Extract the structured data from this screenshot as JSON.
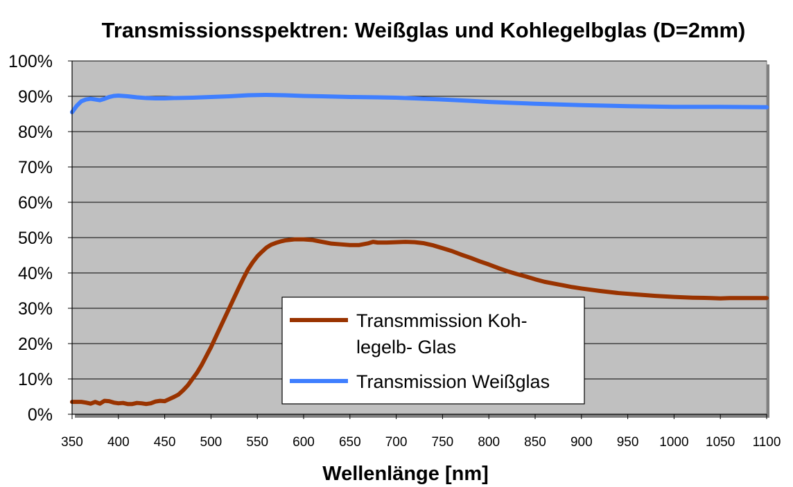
{
  "chart_data": {
    "type": "line",
    "title": "Transmissionsspektren: Weißglas und Kohlegelbglas (D=2mm)",
    "xlabel": "Wellenlänge [nm]",
    "ylabel": "",
    "xlim": [
      350,
      1100
    ],
    "ylim": [
      0,
      100
    ],
    "x_ticks": [
      "350",
      "400",
      "450",
      "500",
      "550",
      "600",
      "650",
      "700",
      "750",
      "800",
      "850",
      "900",
      "950",
      "1000",
      "1050",
      "1100"
    ],
    "y_ticks": [
      "0%",
      "10%",
      "20%",
      "30%",
      "40%",
      "50%",
      "60%",
      "70%",
      "80%",
      "90%",
      "100%"
    ],
    "grid": true,
    "legend_position": "bottom-center",
    "plot_background": "#c0c0c0",
    "series": [
      {
        "name": "Transmmission Kohlegelb- Glas",
        "legend_lines": [
          "Transmmission Koh-",
          "legelb- Glas"
        ],
        "color": "#993300",
        "points": [
          [
            350,
            3.5
          ],
          [
            360,
            3.5
          ],
          [
            365,
            3.3
          ],
          [
            370,
            3.0
          ],
          [
            375,
            3.5
          ],
          [
            380,
            3.0
          ],
          [
            385,
            3.8
          ],
          [
            390,
            3.7
          ],
          [
            395,
            3.3
          ],
          [
            400,
            3.1
          ],
          [
            405,
            3.2
          ],
          [
            410,
            2.9
          ],
          [
            415,
            2.9
          ],
          [
            420,
            3.2
          ],
          [
            425,
            3.1
          ],
          [
            430,
            2.9
          ],
          [
            435,
            3.1
          ],
          [
            440,
            3.6
          ],
          [
            445,
            3.8
          ],
          [
            450,
            3.7
          ],
          [
            455,
            4.3
          ],
          [
            460,
            4.9
          ],
          [
            465,
            5.6
          ],
          [
            470,
            6.8
          ],
          [
            475,
            8.2
          ],
          [
            480,
            10.0
          ],
          [
            485,
            11.8
          ],
          [
            490,
            14.0
          ],
          [
            495,
            16.5
          ],
          [
            500,
            19.0
          ],
          [
            505,
            21.8
          ],
          [
            510,
            24.6
          ],
          [
            515,
            27.4
          ],
          [
            520,
            30.2
          ],
          [
            525,
            33.0
          ],
          [
            530,
            35.8
          ],
          [
            535,
            38.5
          ],
          [
            540,
            41.0
          ],
          [
            545,
            43.0
          ],
          [
            550,
            44.7
          ],
          [
            555,
            46.0
          ],
          [
            560,
            47.2
          ],
          [
            565,
            48.0
          ],
          [
            570,
            48.5
          ],
          [
            575,
            48.9
          ],
          [
            580,
            49.2
          ],
          [
            590,
            49.5
          ],
          [
            600,
            49.5
          ],
          [
            610,
            49.3
          ],
          [
            620,
            48.8
          ],
          [
            630,
            48.3
          ],
          [
            640,
            48.1
          ],
          [
            650,
            47.9
          ],
          [
            660,
            47.9
          ],
          [
            670,
            48.4
          ],
          [
            675,
            48.8
          ],
          [
            680,
            48.6
          ],
          [
            690,
            48.6
          ],
          [
            700,
            48.7
          ],
          [
            710,
            48.8
          ],
          [
            720,
            48.7
          ],
          [
            730,
            48.4
          ],
          [
            740,
            47.8
          ],
          [
            750,
            47.0
          ],
          [
            760,
            46.2
          ],
          [
            770,
            45.2
          ],
          [
            780,
            44.3
          ],
          [
            790,
            43.3
          ],
          [
            800,
            42.4
          ],
          [
            810,
            41.4
          ],
          [
            820,
            40.5
          ],
          [
            830,
            39.7
          ],
          [
            840,
            39.0
          ],
          [
            850,
            38.2
          ],
          [
            860,
            37.5
          ],
          [
            870,
            37.0
          ],
          [
            880,
            36.5
          ],
          [
            890,
            36.0
          ],
          [
            900,
            35.6
          ],
          [
            920,
            34.9
          ],
          [
            940,
            34.3
          ],
          [
            960,
            33.9
          ],
          [
            980,
            33.5
          ],
          [
            1000,
            33.2
          ],
          [
            1020,
            33.0
          ],
          [
            1040,
            32.9
          ],
          [
            1050,
            32.8
          ],
          [
            1060,
            32.9
          ],
          [
            1080,
            32.9
          ],
          [
            1100,
            32.9
          ]
        ]
      },
      {
        "name": "Transmission Weißglas",
        "legend_lines": [
          "Transmission Weißglas"
        ],
        "color": "#3f7fff",
        "points": [
          [
            350,
            85.5
          ],
          [
            355,
            87.3
          ],
          [
            360,
            88.6
          ],
          [
            365,
            89.1
          ],
          [
            370,
            89.3
          ],
          [
            375,
            89.1
          ],
          [
            380,
            88.9
          ],
          [
            385,
            89.3
          ],
          [
            390,
            89.8
          ],
          [
            395,
            90.1
          ],
          [
            400,
            90.2
          ],
          [
            410,
            90.0
          ],
          [
            420,
            89.7
          ],
          [
            430,
            89.5
          ],
          [
            440,
            89.4
          ],
          [
            450,
            89.4
          ],
          [
            460,
            89.5
          ],
          [
            480,
            89.6
          ],
          [
            500,
            89.8
          ],
          [
            520,
            90.0
          ],
          [
            540,
            90.3
          ],
          [
            560,
            90.4
          ],
          [
            580,
            90.3
          ],
          [
            600,
            90.1
          ],
          [
            620,
            90.0
          ],
          [
            650,
            89.8
          ],
          [
            680,
            89.7
          ],
          [
            700,
            89.6
          ],
          [
            720,
            89.4
          ],
          [
            750,
            89.1
          ],
          [
            780,
            88.7
          ],
          [
            800,
            88.4
          ],
          [
            850,
            87.9
          ],
          [
            900,
            87.5
          ],
          [
            950,
            87.2
          ],
          [
            1000,
            87.0
          ],
          [
            1050,
            87.0
          ],
          [
            1100,
            86.9
          ]
        ]
      }
    ]
  }
}
